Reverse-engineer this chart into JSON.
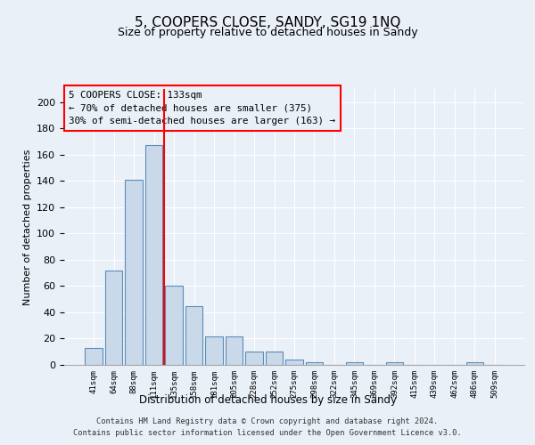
{
  "title": "5, COOPERS CLOSE, SANDY, SG19 1NQ",
  "subtitle": "Size of property relative to detached houses in Sandy",
  "xlabel": "Distribution of detached houses by size in Sandy",
  "ylabel": "Number of detached properties",
  "bar_labels": [
    "41sqm",
    "64sqm",
    "88sqm",
    "111sqm",
    "135sqm",
    "158sqm",
    "181sqm",
    "205sqm",
    "228sqm",
    "252sqm",
    "275sqm",
    "298sqm",
    "322sqm",
    "345sqm",
    "369sqm",
    "392sqm",
    "415sqm",
    "439sqm",
    "462sqm",
    "486sqm",
    "509sqm"
  ],
  "bar_values": [
    13,
    72,
    141,
    167,
    60,
    45,
    22,
    22,
    10,
    10,
    4,
    2,
    0,
    2,
    0,
    2,
    0,
    0,
    0,
    2,
    0
  ],
  "bar_color": "#c9d9ea",
  "bar_edge_color": "#5b8db8",
  "ylim": [
    0,
    210
  ],
  "yticks": [
    0,
    20,
    40,
    60,
    80,
    100,
    120,
    140,
    160,
    180,
    200
  ],
  "annotation_title": "5 COOPERS CLOSE: 133sqm",
  "annotation_line1": "← 70% of detached houses are smaller (375)",
  "annotation_line2": "30% of semi-detached houses are larger (163) →",
  "background_color": "#eaf0f8",
  "grid_color": "#ffffff",
  "footer_line1": "Contains HM Land Registry data © Crown copyright and database right 2024.",
  "footer_line2": "Contains public sector information licensed under the Open Government Licence v3.0."
}
